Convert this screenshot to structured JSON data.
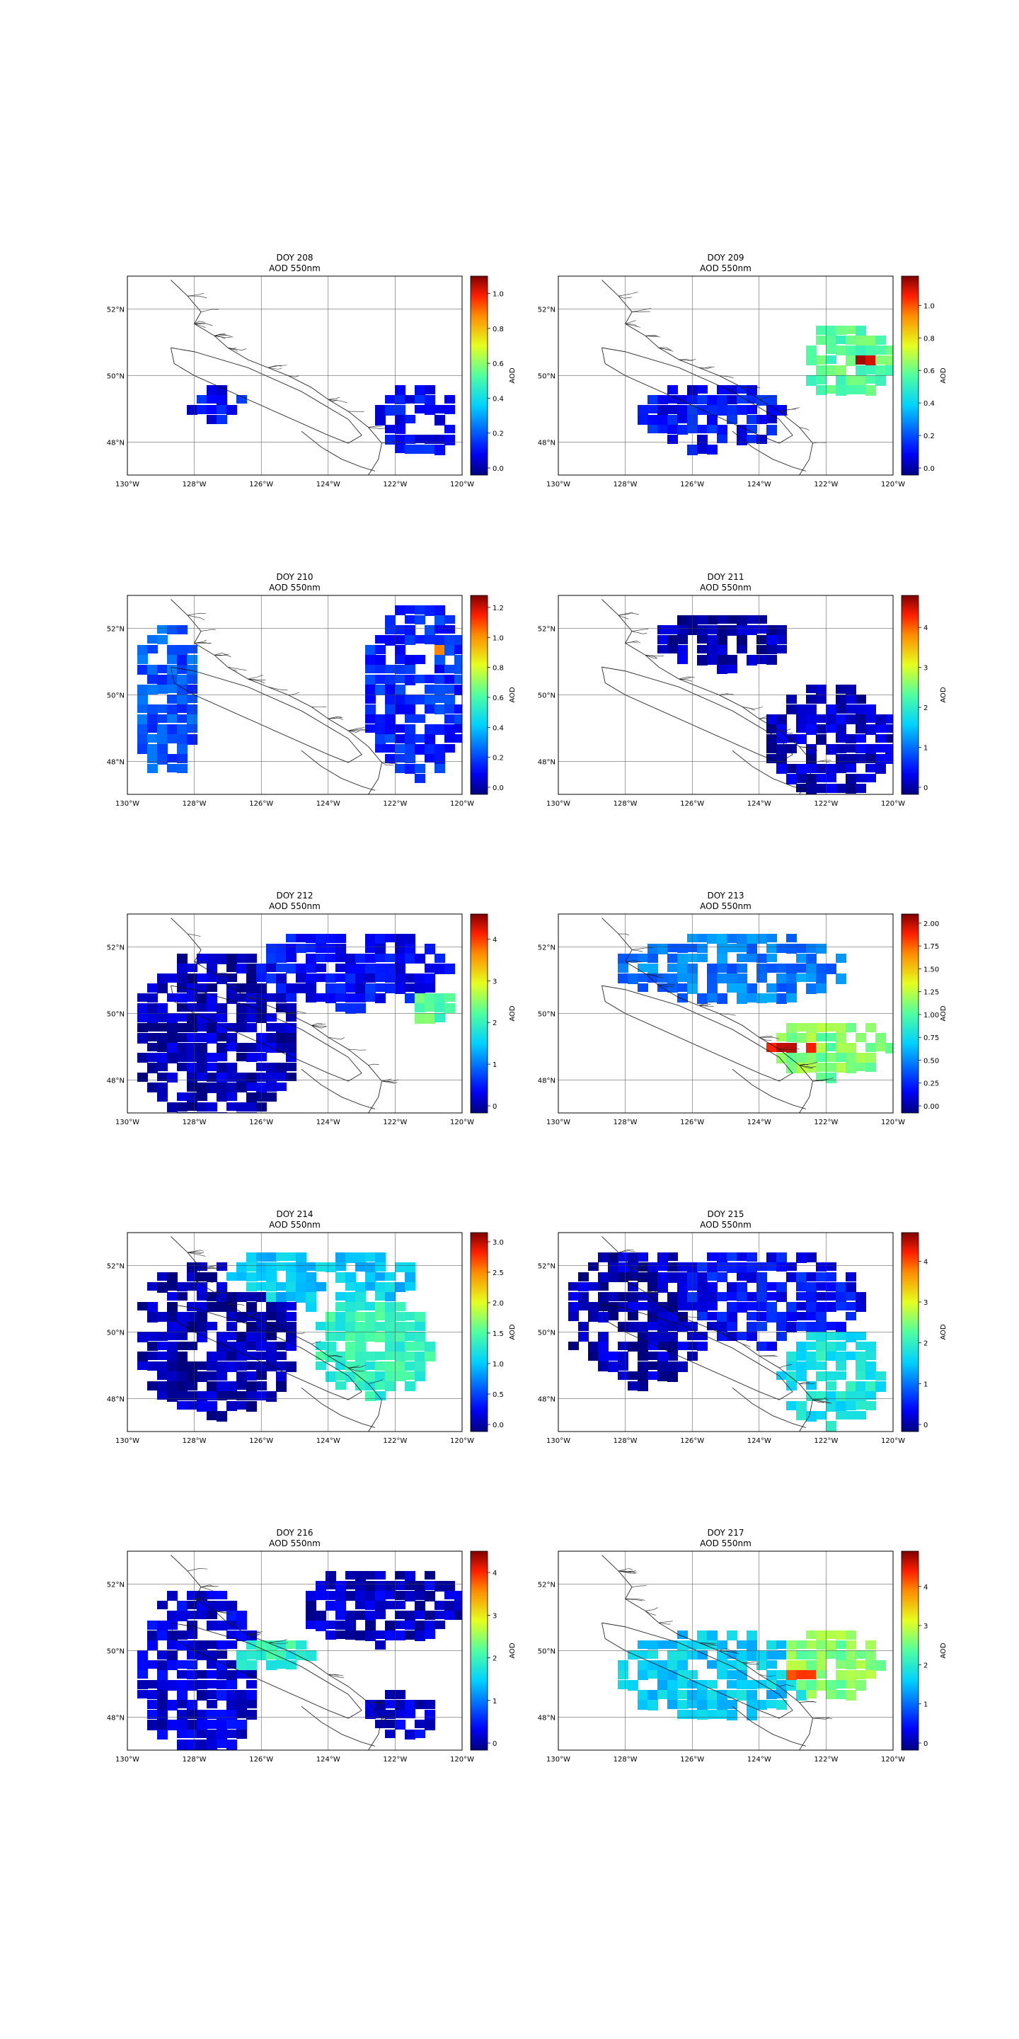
{
  "figure": {
    "x_ticks": [
      "130°W",
      "128°W",
      "126°W",
      "124°W",
      "122°W",
      "120°W"
    ],
    "y_ticks": [
      "52°N",
      "50°N",
      "48°N"
    ],
    "colorbar_label": "AOD",
    "colormap": [
      "#00007f",
      "#0000ff",
      "#007fff",
      "#00ffff",
      "#7fff7f",
      "#ffff00",
      "#ff7f00",
      "#ff0000",
      "#7f0000"
    ],
    "panels": [
      {
        "title": "DOY 208",
        "subtitle": "AOD 550nm",
        "vmax": 1.1,
        "ticks": [
          "0.0",
          "0.2",
          "0.4",
          "0.6",
          "0.8",
          "1.0"
        ],
        "tick_values": [
          0,
          0.2,
          0.4,
          0.6,
          0.8,
          1.0
        ]
      },
      {
        "title": "DOY 209",
        "subtitle": "AOD 550nm",
        "vmax": 1.18,
        "ticks": [
          "0.0",
          "0.2",
          "0.4",
          "0.6",
          "0.8",
          "1.0"
        ],
        "tick_values": [
          0,
          0.2,
          0.4,
          0.6,
          0.8,
          1.0
        ]
      },
      {
        "title": "DOY 210",
        "subtitle": "AOD 550nm",
        "vmax": 1.28,
        "ticks": [
          "0.0",
          "0.2",
          "0.4",
          "0.6",
          "0.8",
          "1.0",
          "1.2"
        ],
        "tick_values": [
          0,
          0.2,
          0.4,
          0.6,
          0.8,
          1.0,
          1.2
        ]
      },
      {
        "title": "DOY 211",
        "subtitle": "AOD 550nm",
        "vmax": 4.8,
        "ticks": [
          "0",
          "1",
          "2",
          "3",
          "4"
        ],
        "tick_values": [
          0,
          1,
          2,
          3,
          4
        ]
      },
      {
        "title": "DOY 212",
        "subtitle": "AOD 550nm",
        "vmax": 4.6,
        "ticks": [
          "0",
          "1",
          "2",
          "3",
          "4"
        ],
        "tick_values": [
          0,
          1,
          2,
          3,
          4
        ]
      },
      {
        "title": "DOY 213",
        "subtitle": "AOD 550nm",
        "vmax": 2.1,
        "ticks": [
          "0.00",
          "0.25",
          "0.50",
          "0.75",
          "1.00",
          "1.25",
          "1.50",
          "1.75",
          "2.00"
        ],
        "tick_values": [
          0,
          0.25,
          0.5,
          0.75,
          1.0,
          1.25,
          1.5,
          1.75,
          2.0
        ]
      },
      {
        "title": "DOY 214",
        "subtitle": "AOD 550nm",
        "vmax": 3.15,
        "ticks": [
          "0.0",
          "0.5",
          "1.0",
          "1.5",
          "2.0",
          "2.5",
          "3.0"
        ],
        "tick_values": [
          0,
          0.5,
          1.0,
          1.5,
          2.0,
          2.5,
          3.0
        ]
      },
      {
        "title": "DOY 215",
        "subtitle": "AOD 550nm",
        "vmax": 4.7,
        "ticks": [
          "0",
          "1",
          "2",
          "3",
          "4"
        ],
        "tick_values": [
          0,
          1,
          2,
          3,
          4
        ]
      },
      {
        "title": "DOY 216",
        "subtitle": "AOD 550nm",
        "vmax": 4.5,
        "ticks": [
          "0",
          "1",
          "2",
          "3",
          "4"
        ],
        "tick_values": [
          0,
          1,
          2,
          3,
          4
        ]
      },
      {
        "title": "DOY 217",
        "subtitle": "AOD 550nm",
        "vmax": 4.9,
        "ticks": [
          "0",
          "1",
          "2",
          "3",
          "4"
        ],
        "tick_values": [
          0,
          1,
          2,
          3,
          4
        ]
      }
    ]
  }
}
